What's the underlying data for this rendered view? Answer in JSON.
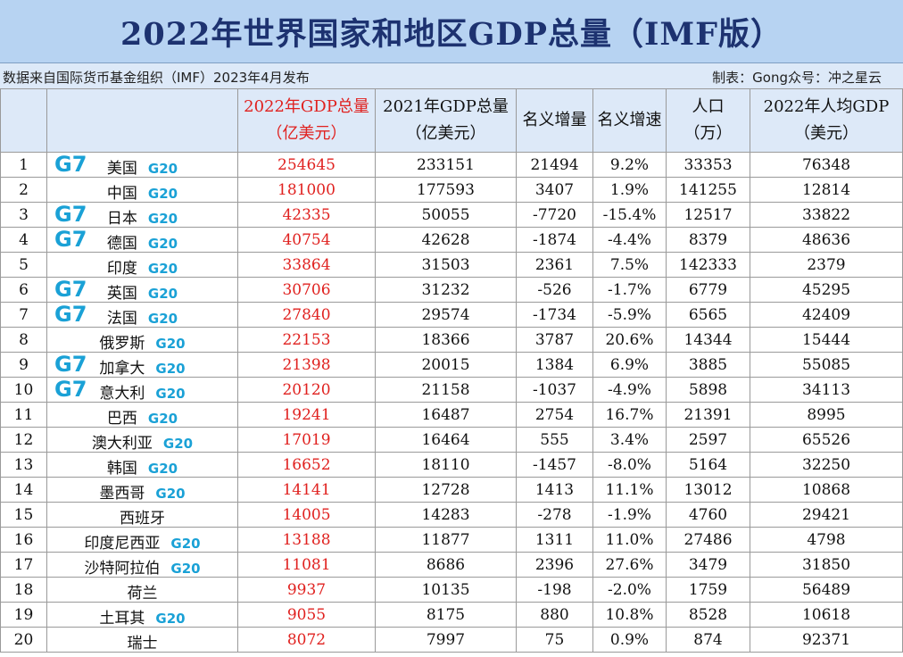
{
  "title": "2022年世界国家和地区GDP总量（IMF版）",
  "source": "数据来自国际货币基金组织（IMF）2023年4月发布",
  "credit": "制表：Gong众号：冲之星云",
  "colors": {
    "title_bg": "#b7d3f2",
    "header_bg": "#dde9f8",
    "title_text": "#1d3270",
    "highlight_red": "#e0211f",
    "badge_blue": "#1aa1d6"
  },
  "columns": {
    "gdp2022_l1": "2022年GDP总量",
    "gdp2022_l2": "（亿美元）",
    "gdp2021_l1": "2021年GDP总量",
    "gdp2021_l2": "（亿美元）",
    "nominal_increase": "名义增量",
    "nominal_growth": "名义增速",
    "population_l1": "人口",
    "population_l2": "（万）",
    "per_capita_l1": "2022年人均GDP",
    "per_capita_l2": "（美元）"
  },
  "rows": [
    {
      "rank": "1",
      "g7": "G7",
      "country": "美国",
      "g20": "G20",
      "gdp2022": "254645",
      "gdp2021": "233151",
      "increase": "21494",
      "growth": "9.2%",
      "population": "33353",
      "per_capita": "76348"
    },
    {
      "rank": "2",
      "g7": "",
      "country": "中国",
      "g20": "G20",
      "gdp2022": "181000",
      "gdp2021": "177593",
      "increase": "3407",
      "growth": "1.9%",
      "population": "141255",
      "per_capita": "12814"
    },
    {
      "rank": "3",
      "g7": "G7",
      "country": "日本",
      "g20": "G20",
      "gdp2022": "42335",
      "gdp2021": "50055",
      "increase": "-7720",
      "growth": "-15.4%",
      "population": "12517",
      "per_capita": "33822"
    },
    {
      "rank": "4",
      "g7": "G7",
      "country": "德国",
      "g20": "G20",
      "gdp2022": "40754",
      "gdp2021": "42628",
      "increase": "-1874",
      "growth": "-4.4%",
      "population": "8379",
      "per_capita": "48636"
    },
    {
      "rank": "5",
      "g7": "",
      "country": "印度",
      "g20": "G20",
      "gdp2022": "33864",
      "gdp2021": "31503",
      "increase": "2361",
      "growth": "7.5%",
      "population": "142333",
      "per_capita": "2379"
    },
    {
      "rank": "6",
      "g7": "G7",
      "country": "英国",
      "g20": "G20",
      "gdp2022": "30706",
      "gdp2021": "31232",
      "increase": "-526",
      "growth": "-1.7%",
      "population": "6779",
      "per_capita": "45295"
    },
    {
      "rank": "7",
      "g7": "G7",
      "country": "法国",
      "g20": "G20",
      "gdp2022": "27840",
      "gdp2021": "29574",
      "increase": "-1734",
      "growth": "-5.9%",
      "population": "6565",
      "per_capita": "42409"
    },
    {
      "rank": "8",
      "g7": "",
      "country": "俄罗斯",
      "g20": "G20",
      "gdp2022": "22153",
      "gdp2021": "18366",
      "increase": "3787",
      "growth": "20.6%",
      "population": "14344",
      "per_capita": "15444"
    },
    {
      "rank": "9",
      "g7": "G7",
      "country": "加拿大",
      "g20": "G20",
      "gdp2022": "21398",
      "gdp2021": "20015",
      "increase": "1384",
      "growth": "6.9%",
      "population": "3885",
      "per_capita": "55085"
    },
    {
      "rank": "10",
      "g7": "G7",
      "country": "意大利",
      "g20": "G20",
      "gdp2022": "20120",
      "gdp2021": "21158",
      "increase": "-1037",
      "growth": "-4.9%",
      "population": "5898",
      "per_capita": "34113"
    },
    {
      "rank": "11",
      "g7": "",
      "country": "巴西",
      "g20": "G20",
      "gdp2022": "19241",
      "gdp2021": "16487",
      "increase": "2754",
      "growth": "16.7%",
      "population": "21391",
      "per_capita": "8995"
    },
    {
      "rank": "12",
      "g7": "",
      "country": "澳大利亚",
      "g20": "G20",
      "gdp2022": "17019",
      "gdp2021": "16464",
      "increase": "555",
      "growth": "3.4%",
      "population": "2597",
      "per_capita": "65526"
    },
    {
      "rank": "13",
      "g7": "",
      "country": "韩国",
      "g20": "G20",
      "gdp2022": "16652",
      "gdp2021": "18110",
      "increase": "-1457",
      "growth": "-8.0%",
      "population": "5164",
      "per_capita": "32250"
    },
    {
      "rank": "14",
      "g7": "",
      "country": "墨西哥",
      "g20": "G20",
      "gdp2022": "14141",
      "gdp2021": "12728",
      "increase": "1413",
      "growth": "11.1%",
      "population": "13012",
      "per_capita": "10868"
    },
    {
      "rank": "15",
      "g7": "",
      "country": "西班牙",
      "g20": "",
      "gdp2022": "14005",
      "gdp2021": "14283",
      "increase": "-278",
      "growth": "-1.9%",
      "population": "4760",
      "per_capita": "29421"
    },
    {
      "rank": "16",
      "g7": "",
      "country": "印度尼西亚",
      "g20": "G20",
      "gdp2022": "13188",
      "gdp2021": "11877",
      "increase": "1311",
      "growth": "11.0%",
      "population": "27486",
      "per_capita": "4798"
    },
    {
      "rank": "17",
      "g7": "",
      "country": "沙特阿拉伯",
      "g20": "G20",
      "gdp2022": "11081",
      "gdp2021": "8686",
      "increase": "2396",
      "growth": "27.6%",
      "population": "3479",
      "per_capita": "31850"
    },
    {
      "rank": "18",
      "g7": "",
      "country": "荷兰",
      "g20": "",
      "gdp2022": "9937",
      "gdp2021": "10135",
      "increase": "-198",
      "growth": "-2.0%",
      "population": "1759",
      "per_capita": "56489"
    },
    {
      "rank": "19",
      "g7": "",
      "country": "土耳其",
      "g20": "G20",
      "gdp2022": "9055",
      "gdp2021": "8175",
      "increase": "880",
      "growth": "10.8%",
      "population": "8528",
      "per_capita": "10618"
    },
    {
      "rank": "20",
      "g7": "",
      "country": "瑞士",
      "g20": "",
      "gdp2022": "8072",
      "gdp2021": "7997",
      "increase": "75",
      "growth": "0.9%",
      "population": "874",
      "per_capita": "92371"
    }
  ]
}
